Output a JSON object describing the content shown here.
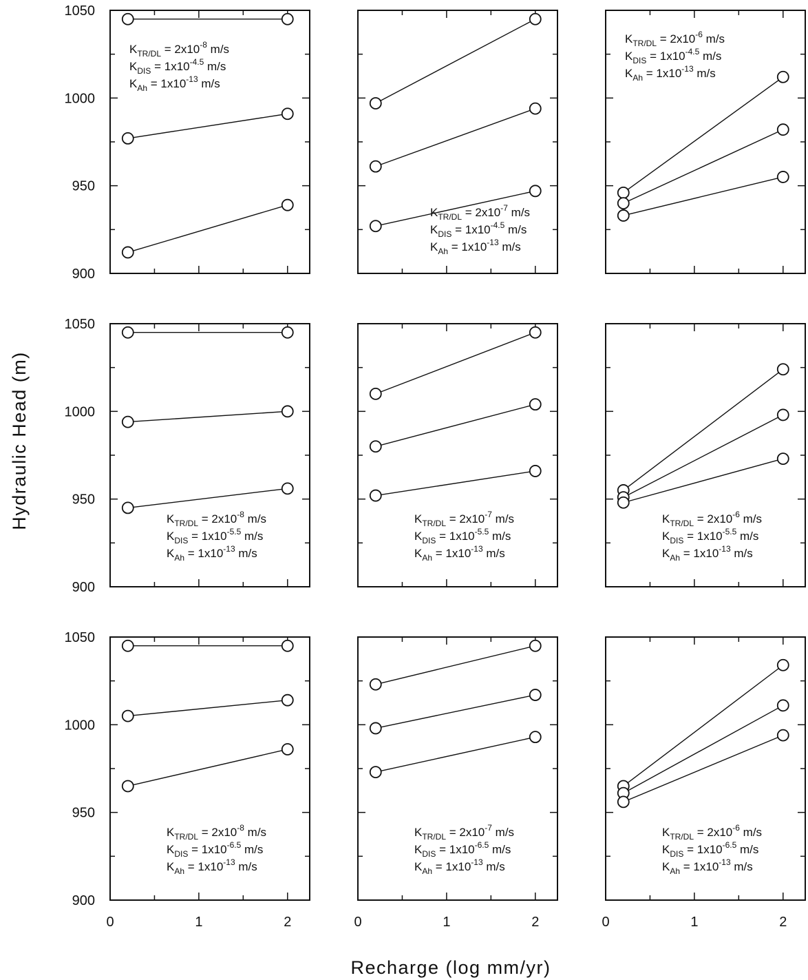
{
  "chart_data": {
    "type": "scatter",
    "layout": "3x3 grid of panels",
    "ylabel": "Hydraulic Head (m)",
    "xlabel": "Recharge (log mm/yr)",
    "ylim": [
      900,
      1050
    ],
    "yticks": [
      900,
      950,
      1000,
      1050
    ],
    "xlim": [
      0,
      2.25
    ],
    "xticks": [
      0,
      1,
      2
    ],
    "grid": false,
    "x": [
      0.2,
      2.0
    ],
    "panels": [
      {
        "annotation_position": "top-center",
        "annotation": [
          {
            "lead": "K",
            "sub": "TR/DL",
            "mid": " = 2x10",
            "sup": "-8",
            "tail": " m/s"
          },
          {
            "lead": "K",
            "sub": "DIS",
            "mid": " = 1x10",
            "sup": "-4.5",
            "tail": " m/s"
          },
          {
            "lead": "K",
            "sub": "Ah",
            "mid": " = 1x10",
            "sup": "-13",
            "tail": " m/s"
          }
        ],
        "series": [
          {
            "values": [
              1045,
              1045
            ]
          },
          {
            "values": [
              977,
              991
            ]
          },
          {
            "values": [
              912,
              939
            ]
          }
        ]
      },
      {
        "annotation_position": "bottom-right",
        "annotation": [
          {
            "lead": "K",
            "sub": "TR/DL",
            "mid": " = 2x10",
            "sup": "-7",
            "tail": " m/s"
          },
          {
            "lead": "K",
            "sub": "DIS",
            "mid": " = 1x10",
            "sup": "-4.5",
            "tail": " m/s"
          },
          {
            "lead": "K",
            "sub": "Ah",
            "mid": " = 1x10",
            "sup": "-13",
            "tail": " m/s"
          }
        ],
        "series": [
          {
            "values": [
              997,
              1045
            ]
          },
          {
            "values": [
              961,
              994
            ]
          },
          {
            "values": [
              927,
              947
            ]
          }
        ]
      },
      {
        "annotation_position": "top-center",
        "annotation": [
          {
            "lead": "K",
            "sub": "TR/DL",
            "mid": " = 2x10",
            "sup": "-6",
            "tail": " m/s"
          },
          {
            "lead": "K",
            "sub": "DIS",
            "mid": " = 1x10",
            "sup": "-4.5",
            "tail": " m/s"
          },
          {
            "lead": "K",
            "sub": "Ah",
            "mid": " = 1x10",
            "sup": "-13",
            "tail": " m/s"
          }
        ],
        "series": [
          {
            "values": [
              946,
              1012
            ]
          },
          {
            "values": [
              940,
              982
            ]
          },
          {
            "values": [
              933,
              955
            ]
          }
        ]
      },
      {
        "annotation_position": "bottom-right",
        "annotation": [
          {
            "lead": "K",
            "sub": "TR/DL",
            "mid": " = 2x10",
            "sup": "-8",
            "tail": " m/s"
          },
          {
            "lead": "K",
            "sub": "DIS",
            "mid": " = 1x10",
            "sup": "-5.5",
            "tail": " m/s"
          },
          {
            "lead": "K",
            "sub": "Ah",
            "mid": " = 1x10",
            "sup": "-13",
            "tail": " m/s"
          }
        ],
        "series": [
          {
            "values": [
              1045,
              1045
            ]
          },
          {
            "values": [
              994,
              1000
            ]
          },
          {
            "values": [
              945,
              956
            ]
          }
        ]
      },
      {
        "annotation_position": "bottom-right",
        "annotation": [
          {
            "lead": "K",
            "sub": "TR/DL",
            "mid": " = 2x10",
            "sup": "-7",
            "tail": " m/s"
          },
          {
            "lead": "K",
            "sub": "DIS",
            "mid": " = 1x10",
            "sup": "-5.5",
            "tail": " m/s"
          },
          {
            "lead": "K",
            "sub": "Ah",
            "mid": " = 1x10",
            "sup": "-13",
            "tail": " m/s"
          }
        ],
        "series": [
          {
            "values": [
              1010,
              1045
            ]
          },
          {
            "values": [
              980,
              1004
            ]
          },
          {
            "values": [
              952,
              966
            ]
          }
        ]
      },
      {
        "annotation_position": "bottom-right",
        "annotation": [
          {
            "lead": "K",
            "sub": "TR/DL",
            "mid": " = 2x10",
            "sup": "-6",
            "tail": " m/s"
          },
          {
            "lead": "K",
            "sub": "DIS",
            "mid": " = 1x10",
            "sup": "-5.5",
            "tail": " m/s"
          },
          {
            "lead": "K",
            "sub": "Ah",
            "mid": " = 1x10",
            "sup": "-13",
            "tail": " m/s"
          }
        ],
        "series": [
          {
            "values": [
              955,
              1024
            ]
          },
          {
            "values": [
              951,
              998
            ]
          },
          {
            "values": [
              948,
              973
            ]
          }
        ]
      },
      {
        "annotation_position": "bottom-right",
        "annotation": [
          {
            "lead": "K",
            "sub": "TR/DL",
            "mid": " = 2x10",
            "sup": "-8",
            "tail": " m/s"
          },
          {
            "lead": "K",
            "sub": "DIS",
            "mid": " = 1x10",
            "sup": "-6.5",
            "tail": " m/s"
          },
          {
            "lead": "K",
            "sub": "Ah",
            "mid": " = 1x10",
            "sup": "-13",
            "tail": " m/s"
          }
        ],
        "series": [
          {
            "values": [
              1045,
              1045
            ]
          },
          {
            "values": [
              1005,
              1014
            ]
          },
          {
            "values": [
              965,
              986
            ]
          }
        ]
      },
      {
        "annotation_position": "bottom-right",
        "annotation": [
          {
            "lead": "K",
            "sub": "TR/DL",
            "mid": " = 2x10",
            "sup": "-7",
            "tail": " m/s"
          },
          {
            "lead": "K",
            "sub": "DIS",
            "mid": " = 1x10",
            "sup": "-6.5",
            "tail": " m/s"
          },
          {
            "lead": "K",
            "sub": "Ah",
            "mid": " = 1x10",
            "sup": "-13",
            "tail": " m/s"
          }
        ],
        "series": [
          {
            "values": [
              1023,
              1045
            ]
          },
          {
            "values": [
              998,
              1017
            ]
          },
          {
            "values": [
              973,
              993
            ]
          }
        ]
      },
      {
        "annotation_position": "bottom-right",
        "annotation": [
          {
            "lead": "K",
            "sub": "TR/DL",
            "mid": " = 2x10",
            "sup": "-6",
            "tail": " m/s"
          },
          {
            "lead": "K",
            "sub": "DIS",
            "mid": " = 1x10",
            "sup": "-6.5",
            "tail": " m/s"
          },
          {
            "lead": "K",
            "sub": "Ah",
            "mid": " = 1x10",
            "sup": "-13",
            "tail": " m/s"
          }
        ],
        "series": [
          {
            "values": [
              965,
              1034
            ]
          },
          {
            "values": [
              961,
              1011
            ]
          },
          {
            "values": [
              956,
              994
            ]
          }
        ]
      }
    ]
  }
}
